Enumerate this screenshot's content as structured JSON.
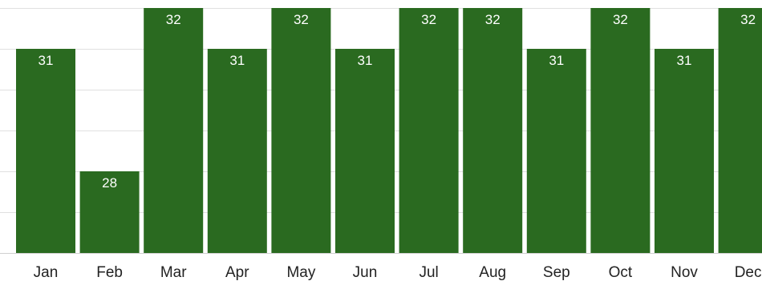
{
  "chart_data": {
    "type": "bar",
    "categories": [
      "Jan",
      "Feb",
      "Mar",
      "Apr",
      "May",
      "Jun",
      "Jul",
      "Aug",
      "Sep",
      "Oct",
      "Nov",
      "Dec"
    ],
    "values": [
      31,
      28,
      32,
      31,
      32,
      31,
      32,
      32,
      31,
      32,
      31,
      32
    ],
    "data_labels": [
      "31",
      "28",
      "32",
      "31",
      "32",
      "31",
      "32",
      "32",
      "31",
      "32",
      "31",
      "32"
    ],
    "ylim": [
      26,
      32
    ],
    "grid": true,
    "legend": "none",
    "colors": {
      "bar": "#2a6a20",
      "label": "#ffffff",
      "grid": "#e0e0e0"
    }
  }
}
